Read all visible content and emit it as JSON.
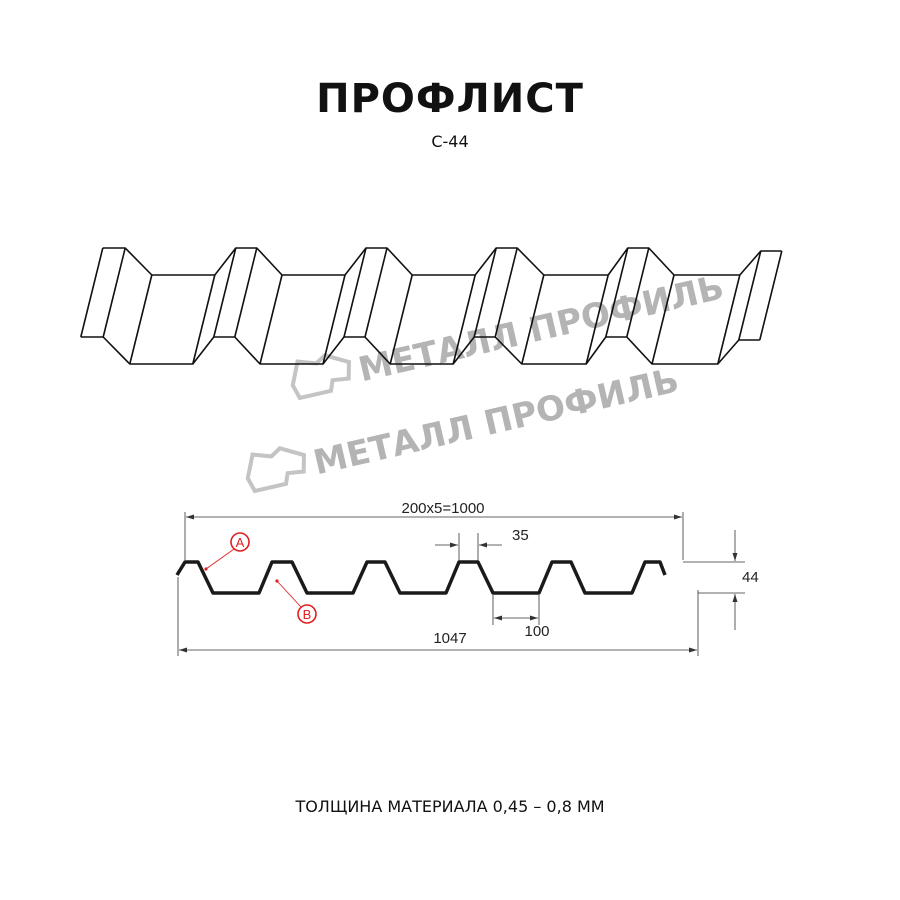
{
  "header": {
    "title": "ПРОФЛИСТ",
    "subtitle": "С-44"
  },
  "watermark": {
    "text": "МЕТАЛЛ ПРОФИЛЬ",
    "color": "#b4b4b4"
  },
  "cross_section": {
    "dimensions": {
      "pitch_total": "200x5=1000",
      "top_width": "35",
      "bottom_width": "100",
      "overall_width": "1047",
      "height": "44"
    },
    "markers": [
      {
        "label": "A",
        "color": "#e02020"
      },
      {
        "label": "B",
        "color": "#e02020"
      }
    ]
  },
  "footer": {
    "thickness": "ТОЛЩИНА МАТЕРИАЛА 0,45 – 0,8 ММ"
  }
}
